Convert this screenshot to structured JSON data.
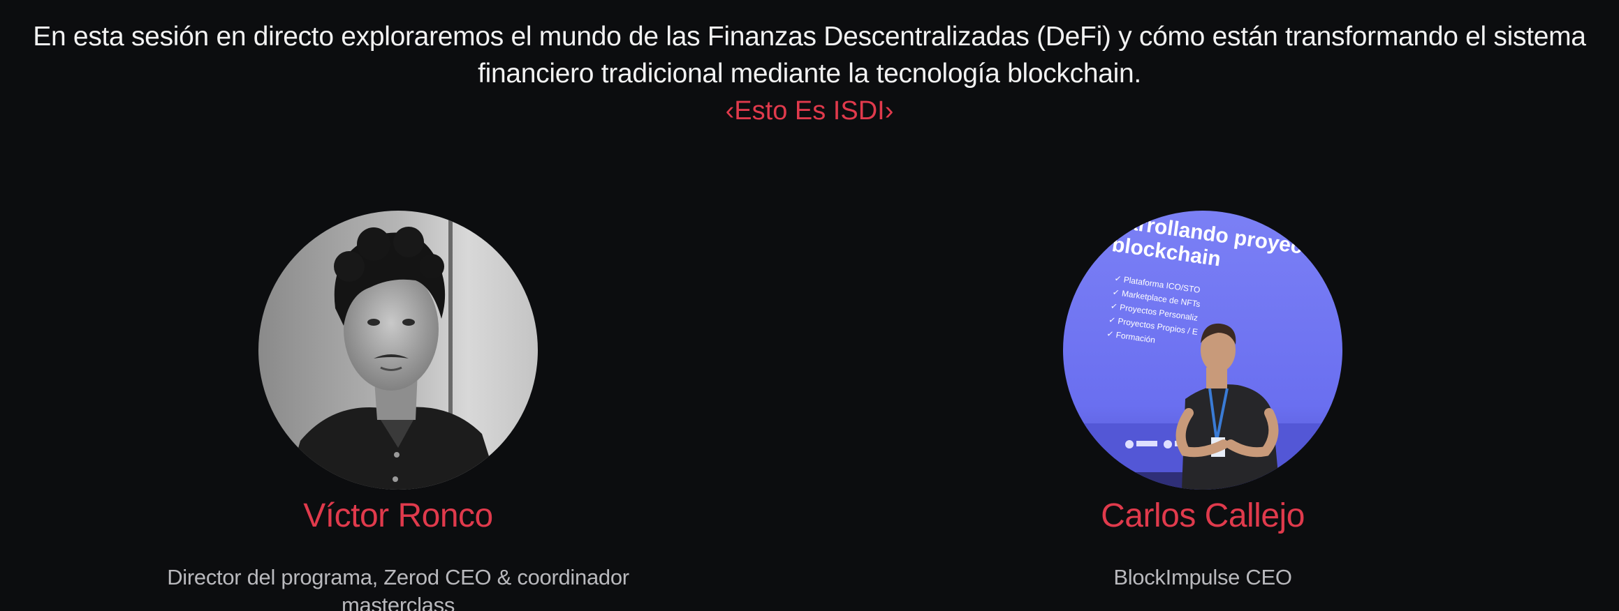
{
  "intro": {
    "line1": "En esta sesión en directo exploraremos el mundo de las Finanzas Descentralizadas (DeFi) y cómo están transformando el sistema",
    "line2": "financiero tradicional mediante la tecnología blockchain.",
    "tagline": "‹Esto Es ISDI›"
  },
  "speakers": [
    {
      "name": "Víctor Ronco",
      "role": "Director del programa, Zerod CEO & coordinador masterclass",
      "photo_icon": "person-portrait-grayscale"
    },
    {
      "name": "Carlos Callejo",
      "role": "BlockImpulse CEO",
      "photo_icon": "person-presenting-on-stage",
      "slide_text": {
        "title_line1": "sarrollando proyectos",
        "title_line2": "blockchain",
        "bullets": [
          "✓ Plataforma ICO/STO",
          "✓ Marketplace de NFTs",
          "✓ Proyectos Personaliz",
          "✓ Proyectos Propios / E",
          "✓ Formación"
        ]
      }
    }
  ],
  "colors": {
    "background": "#0c0d0f",
    "accent": "#e03a4c",
    "text": "#f2f2f2",
    "muted": "#b9b9bd",
    "slide_blue": "#6e73f0"
  }
}
